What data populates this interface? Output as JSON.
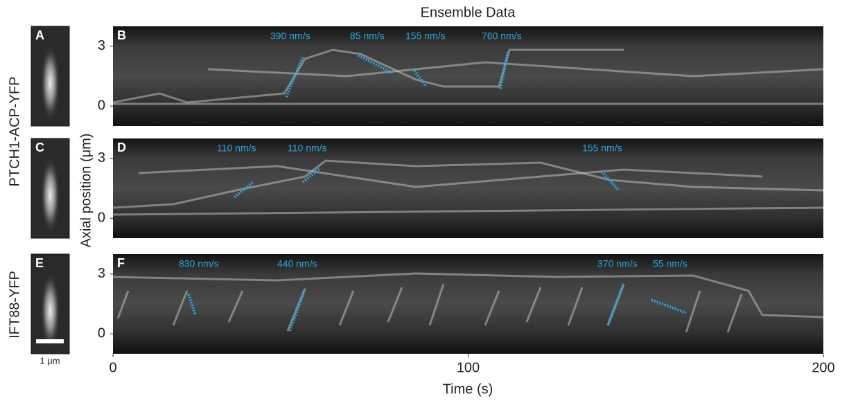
{
  "title": "Ensemble Data",
  "y_axis_label": "Axial position (μm)",
  "x_axis": {
    "label": "Time (s)",
    "xlim": [
      0,
      200
    ],
    "xticks": [
      0,
      100,
      200
    ]
  },
  "row_labels": [
    "PTCH1-ACP-YFP",
    "IFT88-YFP"
  ],
  "scale_bar_label": "1 μm",
  "panels": [
    {
      "image_label": "A",
      "label": "B",
      "ylim": [
        -1,
        4
      ],
      "yticks": [
        0,
        3
      ],
      "annotations": [
        "390 nm/s",
        "85 nm/s",
        "155 nm/s",
        "760 nm/s"
      ]
    },
    {
      "image_label": "C",
      "label": "D",
      "ylim": [
        -1,
        4
      ],
      "yticks": [
        0,
        3
      ],
      "annotations": [
        "110 nm/s",
        "110 nm/s",
        "155 nm/s"
      ]
    },
    {
      "image_label": "E",
      "label": "F",
      "ylim": [
        -1,
        4
      ],
      "yticks": [
        0,
        3
      ],
      "annotations": [
        "830 nm/s",
        "440 nm/s",
        "370 nm/s",
        "55 nm/s"
      ]
    }
  ]
}
